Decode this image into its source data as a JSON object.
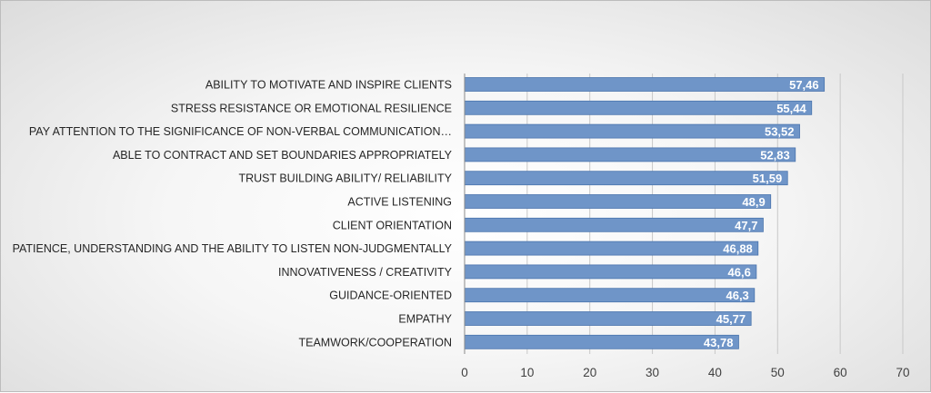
{
  "chart_data": {
    "type": "bar",
    "orientation": "horizontal",
    "categories": [
      "ABILITY TO MOTIVATE AND INSPIRE CLIENTS",
      "STRESS RESISTANCE OR EMOTIONAL RESILIENCE",
      "PAY ATTENTION TO THE SIGNIFICANCE OF NON-VERBAL COMMUNICATION…",
      "ABLE TO CONTRACT AND SET BOUNDARIES APPROPRIATELY",
      "TRUST BUILDING ABILITY/ RELIABILITY",
      "ACTIVE LISTENING",
      "CLIENT ORIENTATION",
      "PATIENCE, UNDERSTANDING AND THE ABILITY TO LISTEN NON-JUDGMENTALLY",
      "INNOVATIVENESS / CREATIVITY",
      "GUIDANCE-ORIENTED",
      "EMPATHY",
      "TEAMWORK/COOPERATION"
    ],
    "values": [
      57.46,
      55.44,
      53.52,
      52.83,
      51.59,
      48.9,
      47.7,
      46.88,
      46.6,
      46.3,
      45.77,
      43.78
    ],
    "data_labels": [
      "57,46",
      "55,44",
      "53,52",
      "52,83",
      "51,59",
      "48,9",
      "47,7",
      "46,88",
      "46,6",
      "46,3",
      "45,77",
      "43,78"
    ],
    "x_ticks": [
      "0",
      "10",
      "20",
      "30",
      "40",
      "50",
      "60",
      "70"
    ],
    "xlim": [
      0,
      70
    ],
    "grid": true,
    "legend": "none",
    "bar_color": "#6f95c8",
    "bar_border_color": "#4a74ad",
    "grid_color": "#c8c8c8",
    "title": "",
    "xlabel": "",
    "ylabel": ""
  }
}
